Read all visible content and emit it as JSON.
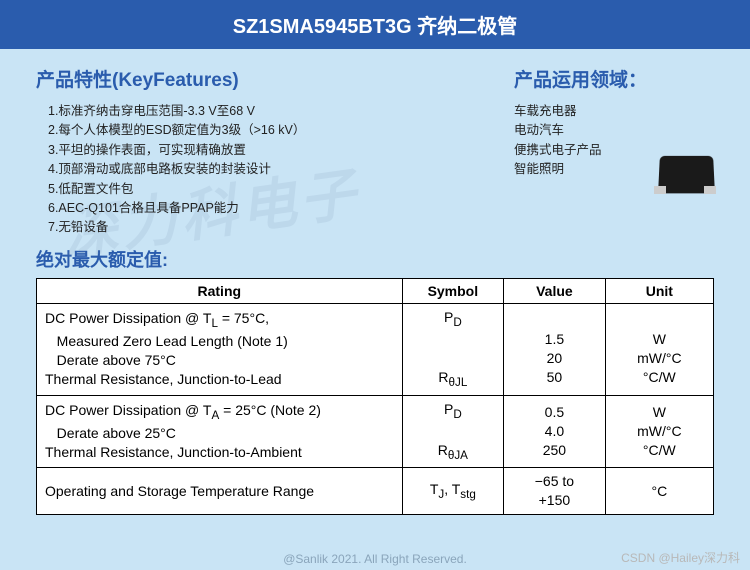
{
  "header": {
    "title": "SZ1SMA5945BT3G 齐纳二极管"
  },
  "watermark": "深力科电子",
  "features": {
    "title": "产品特性(KeyFeatures)",
    "items": [
      "1.标准齐纳击穿电压范围-3.3 V至68 V",
      "2.每个人体模型的ESD额定值为3级（>16 kV）",
      "3.平坦的操作表面，可实现精确放置",
      "4.顶部滑动或底部电路板安装的封装设计",
      "5.低配置文件包",
      "6.AEC-Q101合格且具备PPAP能力",
      "7.无铅设备"
    ]
  },
  "applications": {
    "title": "产品运用领域：",
    "items": [
      "车载充电器",
      "电动汽车",
      "便携式电子产品",
      "智能照明"
    ]
  },
  "ratings": {
    "title": "绝对最大额定值:",
    "headers": {
      "rating": "Rating",
      "symbol": "Symbol",
      "value": "Value",
      "unit": "Unit"
    },
    "rows": [
      {
        "rating_lines": [
          "DC Power Dissipation @ T<sub>L</sub> = 75°C,",
          "&nbsp;&nbsp;&nbsp;Measured Zero Lead Length (Note 1)",
          "&nbsp;&nbsp;&nbsp;Derate above 75°C",
          "Thermal Resistance, Junction-to-Lead"
        ],
        "symbol": "P<sub>D</sub><br><br><br>R<sub>θJL</sub>",
        "value": "<br>1.5<br>20<br>50",
        "unit": "<br>W<br>mW/°C<br>°C/W"
      },
      {
        "rating_lines": [
          "DC Power Dissipation @ T<sub>A</sub> = 25°C (Note 2)",
          "&nbsp;&nbsp;&nbsp;Derate above 25°C",
          "Thermal Resistance, Junction-to-Ambient"
        ],
        "symbol": "P<sub>D</sub><br><br>R<sub>θJA</sub>",
        "value": "0.5<br>4.0<br>250",
        "unit": "W<br>mW/°C<br>°C/W"
      },
      {
        "rating_lines": [
          "Operating and Storage Temperature Range"
        ],
        "symbol": "T<sub>J</sub>, T<sub>stg</sub>",
        "value": "−65 to<br>+150",
        "unit": "°C"
      }
    ]
  },
  "footer": {
    "copyright": "@Sanlik 2021. All Right Reserved.",
    "csdn": "CSDN @Hailey深力科"
  },
  "colors": {
    "header_bg": "#2a5cad",
    "body_bg": "#c9e4f5",
    "title_color": "#2a5cad",
    "border": "#000000",
    "table_bg": "#ffffff"
  }
}
